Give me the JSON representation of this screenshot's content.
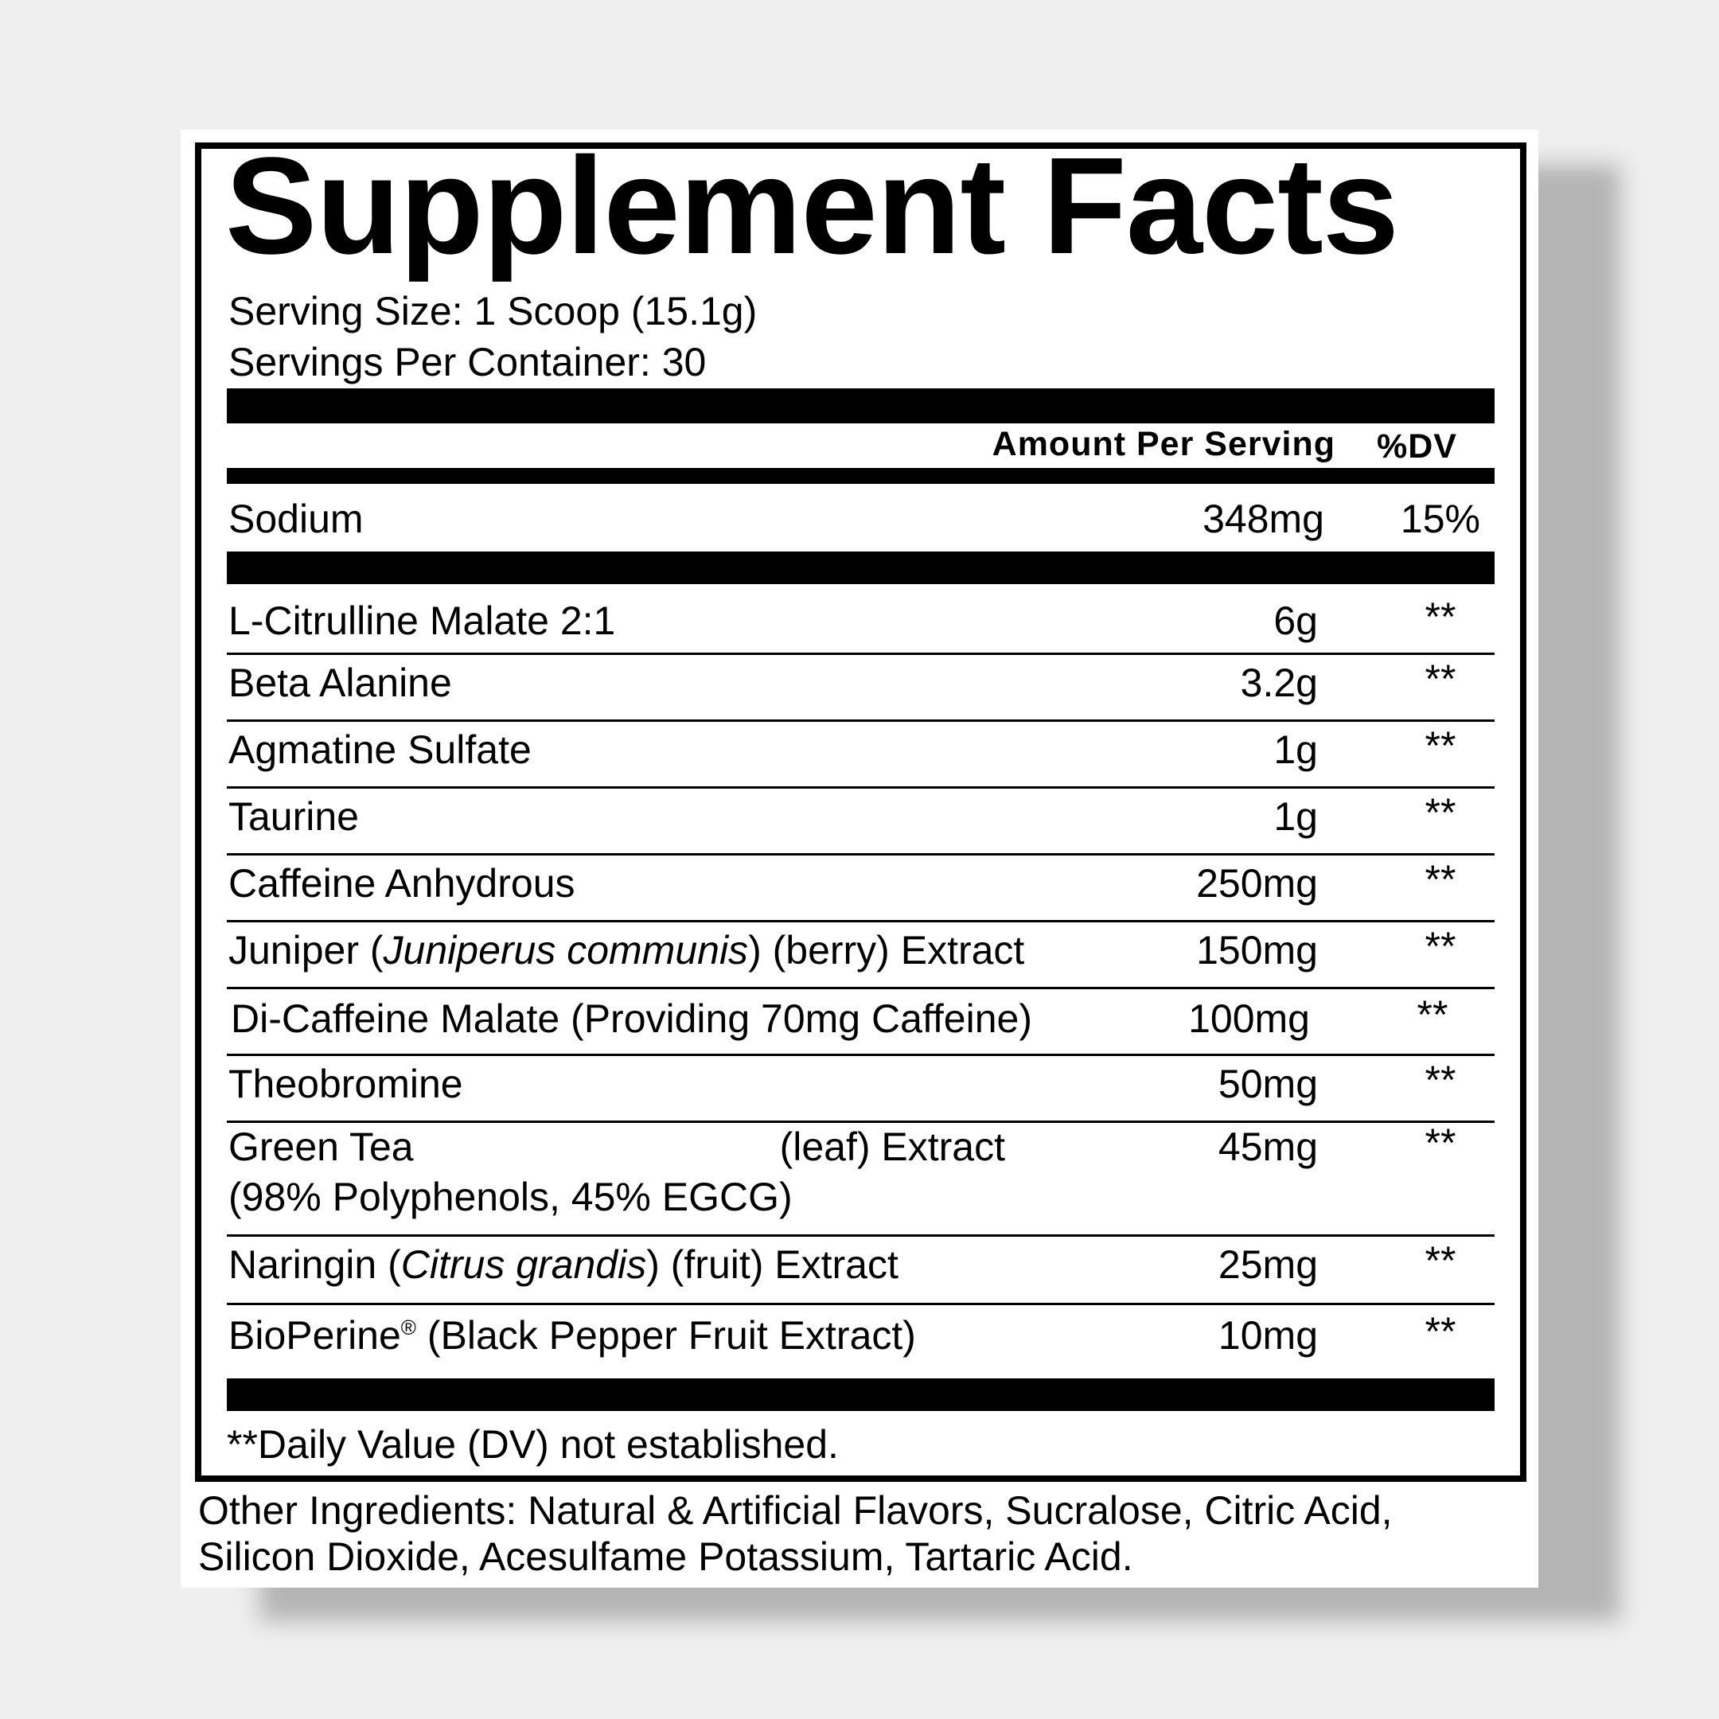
{
  "title": "Supplement Facts",
  "serving_size": "Serving Size: 1 Scoop (15.1g)",
  "servings_per_container": "Servings Per Container: 30",
  "header": {
    "amount": "Amount Per Serving",
    "dv": "%DV"
  },
  "sodium": {
    "name": "Sodium",
    "amount": "348mg",
    "dv": "15%"
  },
  "ingredients": [
    {
      "name": [
        {
          "t": "L-Citrulline Malate 2:1"
        }
      ],
      "amount": "6g",
      "dv": "**"
    },
    {
      "name": [
        {
          "t": "Beta Alanine"
        }
      ],
      "amount": "3.2g",
      "dv": "**"
    },
    {
      "name": [
        {
          "t": "Agmatine Sulfate"
        }
      ],
      "amount": "1g",
      "dv": "**"
    },
    {
      "name": [
        {
          "t": "Taurine"
        }
      ],
      "amount": "1g",
      "dv": "**"
    },
    {
      "name": [
        {
          "t": "Caffeine Anhydrous"
        }
      ],
      "amount": "250mg",
      "dv": "**"
    },
    {
      "name": [
        {
          "t": "Juniper ("
        },
        {
          "t": "Juniperus communis",
          "i": true
        },
        {
          "t": ") (berry) Extract"
        }
      ],
      "amount": "150mg",
      "dv": "**"
    },
    {
      "name": [
        {
          "t": "Di-Caffeine Malate (Providing 70mg Caffeine)"
        }
      ],
      "amount": "100mg",
      "dv": "**"
    },
    {
      "name": [
        {
          "t": "Theobromine"
        }
      ],
      "amount": "50mg",
      "dv": "**"
    },
    {
      "name": [
        {
          "t": "Green Tea"
        },
        {
          "t": "(leaf) Extract",
          "gap": true
        }
      ],
      "line2": "(98% Polyphenols, 45% EGCG)",
      "amount": "45mg",
      "dv": "**"
    },
    {
      "name": [
        {
          "t": "Naringin ("
        },
        {
          "t": "Citrus grandis",
          "i": true
        },
        {
          "t": ") (fruit) Extract"
        }
      ],
      "amount": "25mg",
      "dv": "**"
    },
    {
      "name": [
        {
          "t": "BioPerine"
        },
        {
          "t": "®",
          "sup": true
        },
        {
          "t": " (Black Pepper Fruit Extract)"
        }
      ],
      "amount": "10mg",
      "dv": "**"
    }
  ],
  "footnote": "**Daily Value (DV) not established.",
  "other_ingredients": [
    "Other Ingredients: Natural & Artificial Flavors, Sucralose, Citric Acid,",
    "Silicon Dioxide, Acesulfame Potassium, Tartaric Acid."
  ]
}
